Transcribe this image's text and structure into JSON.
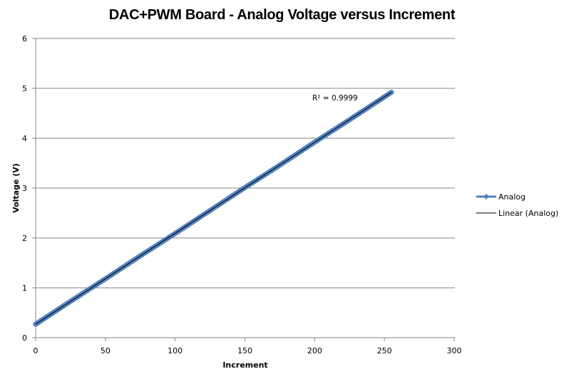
{
  "chart_data": {
    "type": "line",
    "title": "DAC+PWM Board - Analog Voltage versus Increment",
    "xlabel": "Increment",
    "ylabel": "Voltage (V)",
    "xlim": [
      0,
      300
    ],
    "ylim": [
      0,
      6
    ],
    "x_ticks": [
      "0",
      "50",
      "100",
      "150",
      "200",
      "250",
      "300"
    ],
    "y_ticks": [
      "0",
      "1",
      "2",
      "3",
      "4",
      "5",
      "6"
    ],
    "grid": {
      "horizontal": true,
      "vertical": false
    },
    "legend_position": "right",
    "series": [
      {
        "name": "Analog",
        "color": "#4f81bd",
        "marker": "diamond",
        "x": [
          0,
          25,
          50,
          75,
          100,
          125,
          150,
          175,
          200,
          225,
          250,
          255
        ],
        "values": [
          0.27,
          0.73,
          1.18,
          1.64,
          2.09,
          2.55,
          3.01,
          3.46,
          3.92,
          4.37,
          4.83,
          4.92
        ]
      },
      {
        "name": "Linear (Analog)",
        "color": "#000000",
        "type": "trendline",
        "x": [
          0,
          255
        ],
        "values": [
          0.27,
          4.92
        ]
      }
    ],
    "annotations": [
      {
        "text": "R² = 0.9999",
        "x": 220,
        "y": 4.8
      }
    ]
  }
}
